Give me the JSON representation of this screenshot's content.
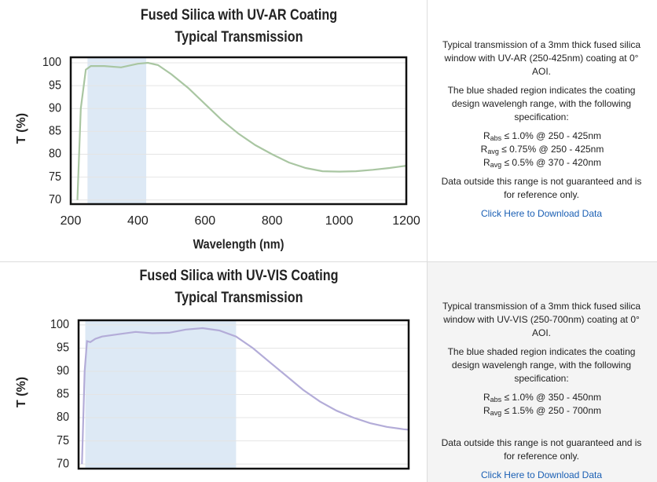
{
  "chart_data": [
    {
      "type": "line",
      "title": "Fused Silica with UV-AR Coating",
      "subtitle": "Typical Transmission",
      "x_label": "Wavelength (nm)",
      "y_label": "T (%)",
      "x": [
        220,
        230,
        245,
        260,
        300,
        350,
        400,
        430,
        460,
        500,
        550,
        600,
        650,
        700,
        750,
        800,
        850,
        900,
        950,
        1000,
        1050,
        1100,
        1150,
        1200
      ],
      "values": [
        70,
        90,
        98.5,
        99.3,
        99.3,
        99,
        99.8,
        100,
        99.5,
        97.5,
        94.5,
        91,
        87.5,
        84.5,
        82,
        80,
        78.2,
        77,
        76.3,
        76.2,
        76.3,
        76.6,
        77,
        77.5
      ],
      "color": "#a9c6a2",
      "shade": [
        250,
        425
      ],
      "shade_color": "#dde9f5",
      "xlim": [
        200,
        1200
      ],
      "xticks": [
        200,
        400,
        600,
        800,
        1000,
        1200
      ],
      "ylim": [
        69.1,
        101.2
      ],
      "yticks": [
        70,
        75,
        80,
        85,
        90,
        95,
        100
      ],
      "grid": true
    },
    {
      "type": "line",
      "title": "Fused Silica with UV-VIS Coating",
      "subtitle": "Typical Transmission",
      "y_label": "T (%)",
      "x": [
        240,
        248,
        255,
        265,
        280,
        300,
        350,
        400,
        450,
        500,
        550,
        600,
        650,
        700,
        750,
        800,
        850,
        900,
        950,
        1000,
        1050,
        1100,
        1150,
        1200,
        1215
      ],
      "values": [
        70,
        90,
        96.5,
        96.3,
        97,
        97.5,
        98,
        98.5,
        98.2,
        98.3,
        99,
        99.3,
        98.8,
        97.5,
        95,
        92,
        89,
        86,
        83.5,
        81.5,
        80,
        78.8,
        78,
        77.5,
        77.4
      ],
      "color": "#b3acd8",
      "shade": [
        250,
        700
      ],
      "shade_color": "#dde9f5",
      "xlim": [
        230,
        1215
      ],
      "ylim": [
        69,
        101
      ],
      "yticks": [
        70,
        75,
        80,
        85,
        90,
        95,
        100
      ],
      "grid": true
    }
  ],
  "panels": [
    {
      "intro": "Typical transmission of a 3mm thick fused silica window with UV-AR (250-425nm) coating at 0° AOI.",
      "shade_note": "The blue shaded region indicates the coating design wavelengh range, with the following specification:",
      "specs": [
        {
          "symbol": "R",
          "sub": "abs",
          "text": "≤ 1.0% @ 250 - 425nm"
        },
        {
          "symbol": "R",
          "sub": "avg",
          "text": "≤ 0.75% @ 250 - 425nm"
        },
        {
          "symbol": "R",
          "sub": "avg",
          "text": "≤ 0.5% @ 370 - 420nm"
        }
      ],
      "note": "Data outside this range is not guaranteed and is for reference only.",
      "link": "Click Here to Download Data"
    },
    {
      "intro": "Typical transmission of a 3mm thick fused silica window with UV-VIS (250-700nm) coating at 0° AOI.",
      "shade_note": "The blue shaded region indicates the coating design wavelengh range, with the following specification:",
      "specs": [
        {
          "symbol": "R",
          "sub": "abs",
          "text": "≤ 1.0% @ 350 - 450nm"
        },
        {
          "symbol": "R",
          "sub": "avg",
          "text": "≤ 1.5% @ 250 - 700nm"
        }
      ],
      "note": "Data outside this range is not guaranteed and is for reference only.",
      "link": "Click Here to Download Data"
    }
  ]
}
